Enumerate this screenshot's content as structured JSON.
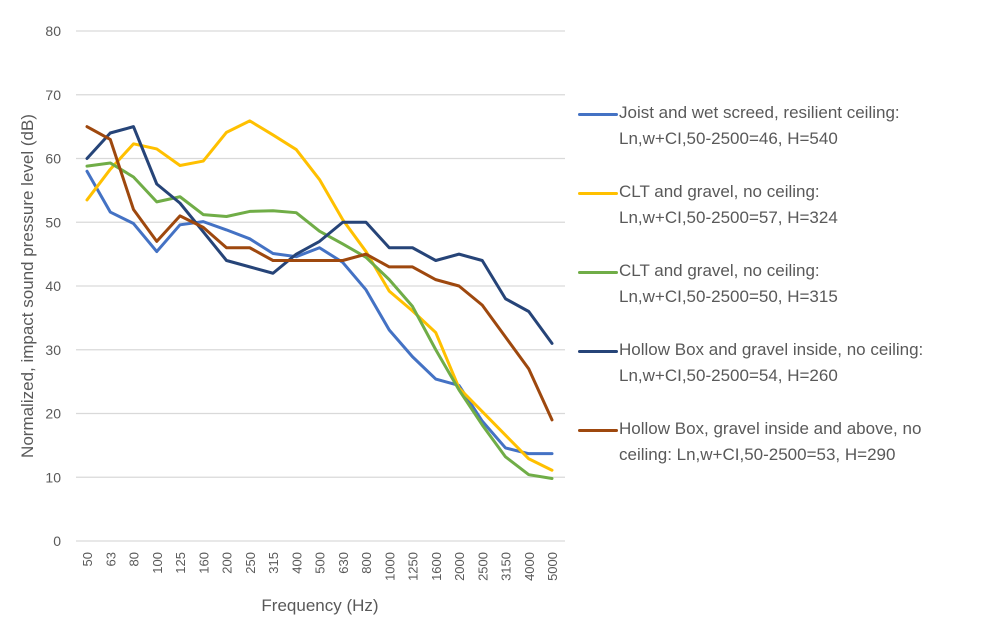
{
  "chart_data": {
    "type": "line",
    "title": "",
    "xlabel": "Frequency (Hz)",
    "ylabel": "Normalized, impact sound pressure level (dB)",
    "ylim": [
      0,
      80
    ],
    "yticks": [
      0,
      10,
      20,
      30,
      40,
      50,
      60,
      70,
      80
    ],
    "grid": true,
    "legend_position": "right",
    "categories": [
      "50",
      "63",
      "80",
      "100",
      "125",
      "160",
      "200",
      "250",
      "315",
      "400",
      "500",
      "630",
      "800",
      "1000",
      "1250",
      "1600",
      "2000",
      "2500",
      "3150",
      "4000",
      "5000"
    ],
    "series": [
      {
        "name": "Joist and wet screed, resilient ceiling: Ln,w+CI,50-2500=46, H=540",
        "legend_lines": [
          "Joist and wet screed, resilient ceiling:",
          "Ln,w+CI,50-2500=46, H=540"
        ],
        "color": "#4472C4",
        "values": [
          58,
          51.6,
          49.8,
          45.4,
          49.6,
          50.1,
          48.8,
          47.4,
          45.1,
          44.6,
          46,
          43.7,
          39.4,
          33.1,
          28.9,
          25.4,
          24.4,
          18.8,
          14.6,
          13.7,
          13.7
        ]
      },
      {
        "name": "CLT and gravel, no ceiling: Ln,w+CI,50-2500=57, H=324",
        "legend_lines": [
          "CLT and gravel, no ceiling:",
          "Ln,w+CI,50-2500=57, H=324"
        ],
        "color": "#FFC000",
        "values": [
          53.5,
          58.3,
          62.3,
          61.5,
          58.9,
          59.6,
          64.1,
          65.9,
          63.7,
          61.4,
          56.7,
          50.4,
          45.4,
          39.2,
          36.1,
          32.7,
          24,
          20.3,
          16.6,
          12.9,
          11.1
        ]
      },
      {
        "name": "CLT and gravel, no ceiling: Ln,w+CI,50-2500=50, H=315",
        "legend_lines": [
          "CLT and gravel, no ceiling:",
          "Ln,w+CI,50-2500=50, H=315"
        ],
        "color": "#70AD47",
        "values": [
          58.8,
          59.3,
          57.1,
          53.2,
          54,
          51.2,
          50.9,
          51.7,
          51.8,
          51.5,
          48.6,
          46.6,
          44.5,
          41,
          36.8,
          30,
          23.7,
          18.2,
          13.2,
          10.4,
          9.8
        ]
      },
      {
        "name": "Hollow Box and gravel inside, no ceiling: Ln,w+CI,50-2500=54, H=260",
        "legend_lines": [
          "Hollow Box and gravel inside, no ceiling:",
          "Ln,w+CI,50-2500=54, H=260"
        ],
        "color": "#264478",
        "values": [
          60,
          64,
          65,
          56,
          53,
          48.5,
          44,
          43,
          42,
          45,
          47,
          50,
          50,
          46,
          46,
          44,
          45,
          44,
          38,
          36,
          31
        ]
      },
      {
        "name": "Hollow Box, gravel inside and above, no ceiling: Ln,w+CI,50-2500=53, H=290",
        "legend_lines": [
          "Hollow Box, gravel inside and above, no",
          "ceiling: Ln,w+CI,50-2500=53, H=290"
        ],
        "color": "#9E480E",
        "values": [
          65,
          63,
          52,
          47,
          51,
          49.2,
          46,
          46,
          44,
          44,
          44,
          44,
          45,
          43,
          43,
          41,
          40,
          37,
          32,
          27,
          19
        ]
      }
    ]
  }
}
